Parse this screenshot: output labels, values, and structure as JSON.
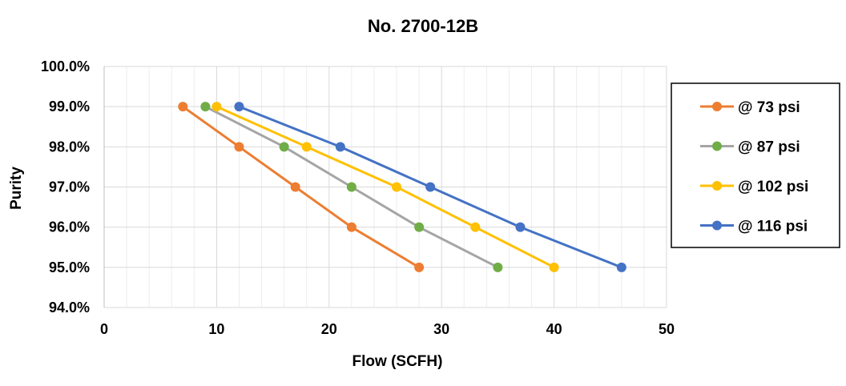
{
  "chart_data": {
    "type": "line",
    "title": "No. 2700-12B",
    "xlabel": "Flow (SCFH)",
    "ylabel": "Purity",
    "xlim": [
      0,
      50
    ],
    "ylim": [
      94,
      100
    ],
    "x_ticks": [
      0,
      10,
      20,
      30,
      40,
      50
    ],
    "y_ticks": [
      94,
      95,
      96,
      97,
      98,
      99,
      100
    ],
    "y_tick_labels": [
      "94.0%",
      "95.0%",
      "96.0%",
      "97.0%",
      "98.0%",
      "99.0%",
      "100.0%"
    ],
    "grid": true,
    "legend_position": "right",
    "series": [
      {
        "name": "@ 73 psi",
        "line_color": "#ED7D31",
        "marker_color": "#ED7D31",
        "points": [
          [
            7,
            99
          ],
          [
            12,
            98
          ],
          [
            17,
            97
          ],
          [
            22,
            96
          ],
          [
            28,
            95
          ]
        ]
      },
      {
        "name": "@ 87 psi",
        "line_color": "#A5A5A5",
        "marker_color": "#70AD47",
        "points": [
          [
            9,
            99
          ],
          [
            16,
            98
          ],
          [
            22,
            97
          ],
          [
            28,
            96
          ],
          [
            35,
            95
          ]
        ]
      },
      {
        "name": "@ 102 psi",
        "line_color": "#FFC000",
        "marker_color": "#FFC000",
        "points": [
          [
            10,
            99
          ],
          [
            18,
            98
          ],
          [
            26,
            97
          ],
          [
            33,
            96
          ],
          [
            40,
            95
          ]
        ]
      },
      {
        "name": "@ 116 psi",
        "line_color": "#4472C4",
        "marker_color": "#4472C4",
        "points": [
          [
            12,
            99
          ],
          [
            21,
            98
          ],
          [
            29,
            97
          ],
          [
            37,
            96
          ],
          [
            46,
            95
          ]
        ]
      }
    ]
  }
}
